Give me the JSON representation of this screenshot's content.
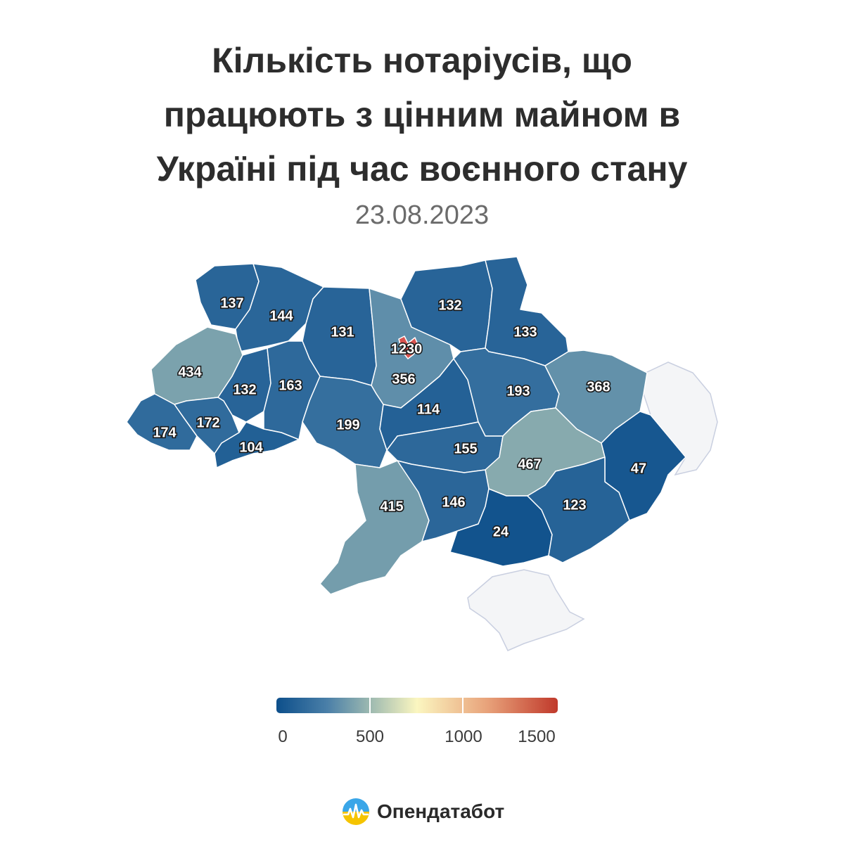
{
  "title_lines": [
    "Кількість нотаріусів, що",
    "працюють з цінним майном в",
    "Україні під час воєнного стану"
  ],
  "date": "23.08.2023",
  "colors": {
    "scale": [
      "#0d4f8b",
      "#4a7fa8",
      "#9bb8b0",
      "#fbf6c0",
      "#e8a27a",
      "#c0392b"
    ],
    "occupied": "#f4f5f7",
    "kyiv_city": "#d9534f"
  },
  "legend": {
    "min": 0,
    "max": 1600,
    "ticks": [
      "0",
      "500",
      "1000",
      "1500"
    ],
    "tick_values": [
      0,
      500,
      1000,
      1500
    ]
  },
  "map_data": {
    "type": "choropleth",
    "regions": [
      {
        "id": "volyn",
        "value": 137,
        "label": "137"
      },
      {
        "id": "rivne",
        "value": 144,
        "label": "144"
      },
      {
        "id": "zhytomyr",
        "value": 131,
        "label": "131"
      },
      {
        "id": "kyiv-oblast",
        "value": 356,
        "label": "356"
      },
      {
        "id": "kyiv-city",
        "value": 1230,
        "label": "1230"
      },
      {
        "id": "chernihiv",
        "value": 132,
        "label": "132"
      },
      {
        "id": "sumy",
        "value": 133,
        "label": "133"
      },
      {
        "id": "lviv",
        "value": 434,
        "label": "434"
      },
      {
        "id": "ternopil",
        "value": 132,
        "label": "132"
      },
      {
        "id": "khmelnytskyi",
        "value": 163,
        "label": "163"
      },
      {
        "id": "vinnytsia",
        "value": 199,
        "label": "199"
      },
      {
        "id": "cherkasy",
        "value": 114,
        "label": "114"
      },
      {
        "id": "poltava",
        "value": 193,
        "label": "193"
      },
      {
        "id": "kharkiv",
        "value": 368,
        "label": "368"
      },
      {
        "id": "zakarpattia",
        "value": 174,
        "label": "174"
      },
      {
        "id": "ivano-frankivsk",
        "value": 172,
        "label": "172"
      },
      {
        "id": "chernivtsi",
        "value": 104,
        "label": "104"
      },
      {
        "id": "kirovohrad",
        "value": 155,
        "label": "155"
      },
      {
        "id": "dnipropetrovsk",
        "value": 467,
        "label": "467"
      },
      {
        "id": "luhansk",
        "value": 47,
        "label": "47"
      },
      {
        "id": "odesa",
        "value": 415,
        "label": "415"
      },
      {
        "id": "mykolaiv",
        "value": 146,
        "label": "146"
      },
      {
        "id": "kherson",
        "value": 24,
        "label": "24"
      },
      {
        "id": "zaporizhzhia",
        "value": 123,
        "label": "123"
      }
    ]
  },
  "brand": {
    "name": "Опендатабот"
  }
}
